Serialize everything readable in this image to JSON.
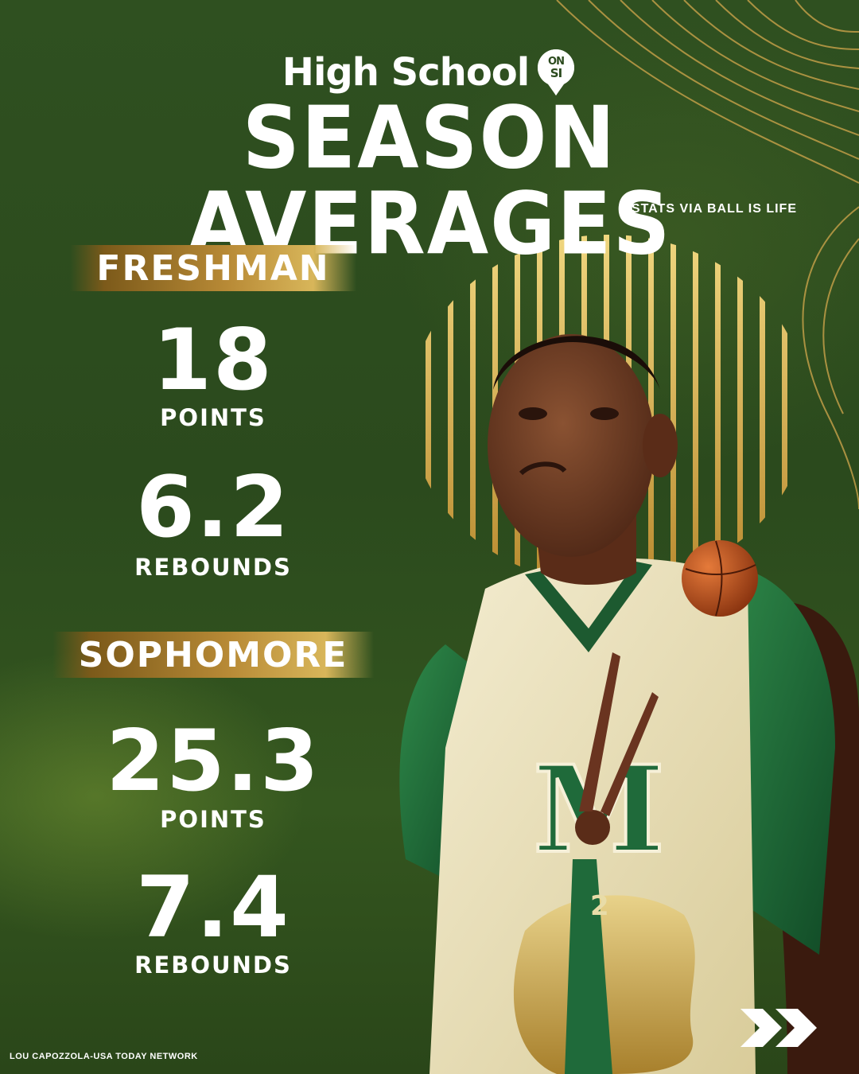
{
  "brand": {
    "name": "High School",
    "badge_top": "ON",
    "badge_bottom": "SI"
  },
  "title": "SEASON AVERAGES",
  "source_credit": "STATS VIA BALL IS LIFE",
  "freshman": {
    "label": "FRESHMAN",
    "points_value": "18",
    "points_label": "POINTS",
    "rebounds_value": "6.2",
    "rebounds_label": "REBOUNDS"
  },
  "sophomore": {
    "label": "SOPHOMORE",
    "points_value": "25.3",
    "points_label": "POINTS",
    "rebounds_value": "7.4",
    "rebounds_label": "REBOUNDS"
  },
  "jersey_letter": "M",
  "photo_credit": "LOU CAPOZZOLA-USA TODAY NETWORK",
  "colors": {
    "background": "#2b4a1d",
    "gold": "#c9a24a",
    "jersey_green": "#1f6a3a",
    "jersey_cream": "#efe6c4",
    "text": "#ffffff"
  },
  "icons": [
    "si-logo-icon",
    "next-chevrons-icon"
  ]
}
